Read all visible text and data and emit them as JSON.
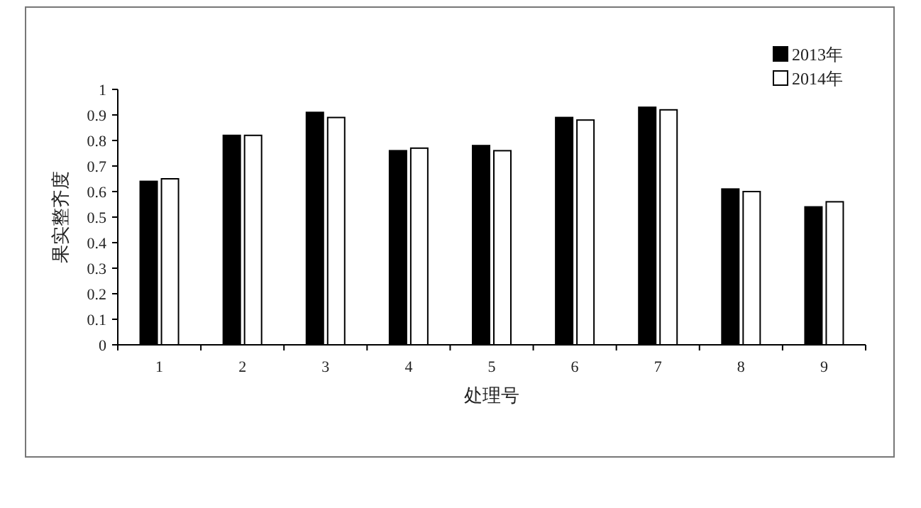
{
  "chart_data": {
    "type": "bar",
    "xlabel": "处理号",
    "ylabel": "果实整齐度",
    "categories": [
      "1",
      "2",
      "3",
      "4",
      "5",
      "6",
      "7",
      "8",
      "9"
    ],
    "series": [
      {
        "name": "2013年",
        "color": "#000000",
        "values": [
          0.64,
          0.82,
          0.91,
          0.76,
          0.78,
          0.89,
          0.93,
          0.61,
          0.54
        ]
      },
      {
        "name": "2014年",
        "color": "#ffffff",
        "values": [
          0.65,
          0.82,
          0.89,
          0.77,
          0.76,
          0.88,
          0.92,
          0.6,
          0.56
        ]
      }
    ],
    "ylim": [
      0,
      1
    ],
    "yticks": [
      0,
      0.1,
      0.2,
      0.3,
      0.4,
      0.5,
      0.6,
      0.7,
      0.8,
      0.9,
      1
    ],
    "legend": "top right"
  }
}
